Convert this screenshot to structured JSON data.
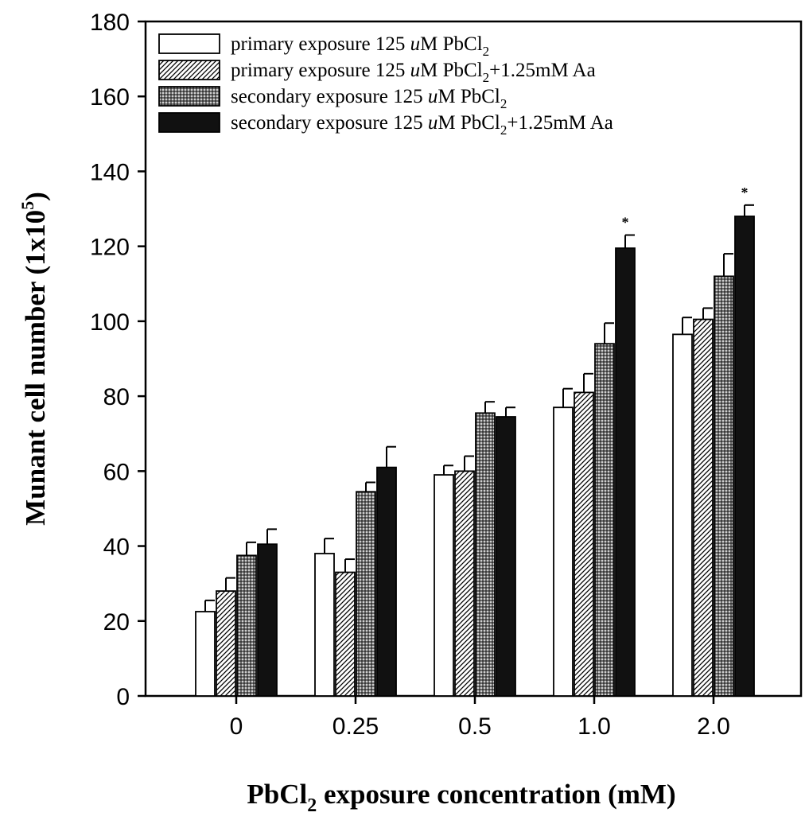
{
  "chart_data": {
    "type": "bar",
    "title": "",
    "xlabel_main": "PbCl",
    "xlabel_sub": "2",
    "xlabel_rest": " exposure concentration (mM)",
    "ylabel_main": "Munant cell number (1x10",
    "ylabel_sup": "5",
    "ylabel_end": ")",
    "categories": [
      "0",
      "0.25",
      "0.5",
      "1.0",
      "2.0"
    ],
    "ylim": [
      0,
      180
    ],
    "yticks": [
      "0",
      "20",
      "40",
      "60",
      "80",
      "100",
      "120",
      "140",
      "160",
      "180"
    ],
    "grid": false,
    "legend_position": "top-left",
    "series": [
      {
        "name": "primary exposure 125 uM PbCl2",
        "legend": {
          "pre": "primary exposure 125 ",
          "unit_u": "u",
          "mid": "M PbCl",
          "sub": "2",
          "post": ""
        },
        "fill": "white",
        "values": [
          22.5,
          38,
          59,
          77,
          96.5
        ],
        "errors": [
          3,
          4,
          2.5,
          5,
          4.5
        ],
        "significant": [
          false,
          false,
          false,
          false,
          false
        ]
      },
      {
        "name": "primary exposure 125 uM PbCl2+1.25mM Aa",
        "legend": {
          "pre": "primary exposure 125 ",
          "unit_u": "u",
          "mid": "M PbCl",
          "sub": "2",
          "post": "+1.25mM Aa"
        },
        "fill": "hatch",
        "values": [
          28,
          33,
          60,
          81,
          100.5
        ],
        "errors": [
          3.5,
          3.5,
          4,
          5,
          3
        ],
        "significant": [
          false,
          false,
          false,
          false,
          false
        ]
      },
      {
        "name": "secondary exposure 125 uM PbCl2",
        "legend": {
          "pre": "secondary exposure 125 ",
          "unit_u": "u",
          "mid": "M PbCl",
          "sub": "2",
          "post": ""
        },
        "fill": "crosshatch",
        "values": [
          37.5,
          54.5,
          75.5,
          94,
          112
        ],
        "errors": [
          3.5,
          2.5,
          3,
          5.5,
          6
        ],
        "significant": [
          false,
          false,
          false,
          false,
          false
        ]
      },
      {
        "name": "secondary exposure 125 uM PbCl2+1.25mM Aa",
        "legend": {
          "pre": "secondary exposure 125 ",
          "unit_u": "u",
          "mid": "M PbCl",
          "sub": "2",
          "post": "+1.25mM Aa"
        },
        "fill": "black",
        "values": [
          40.5,
          61,
          74.5,
          119.5,
          128
        ],
        "errors": [
          4,
          5.5,
          2.5,
          3.5,
          3
        ],
        "significant": [
          false,
          false,
          false,
          true,
          true
        ]
      }
    ],
    "significance_mark": "*"
  }
}
